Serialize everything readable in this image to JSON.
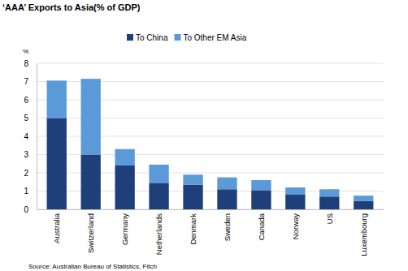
{
  "chart_data": {
    "type": "bar",
    "stacked": true,
    "title": "‘AAA’ Exports to Asia(% of GDP)",
    "y_label": "%",
    "source": "Source: Australian Bureau of Statistics, Fitch",
    "categories": [
      "Australia",
      "Switzerland",
      "Germany",
      "Netherlands",
      "Denmark",
      "Sweden",
      "Canada",
      "Norway",
      "US",
      "Luxembourg"
    ],
    "series": [
      {
        "name": "To China",
        "color": "#1f3f7a",
        "values": [
          5.0,
          3.0,
          2.4,
          1.45,
          1.35,
          1.1,
          1.05,
          0.8,
          0.7,
          0.45
        ]
      },
      {
        "name": "To Other EM Asia",
        "color": "#5b9ad8",
        "values": [
          2.05,
          4.15,
          0.9,
          1.0,
          0.55,
          0.65,
          0.55,
          0.4,
          0.4,
          0.3
        ]
      }
    ],
    "ylim": [
      0,
      8
    ],
    "yticks": [
      0,
      1,
      2,
      3,
      4,
      5,
      6,
      7,
      8
    ],
    "grid": true,
    "legend": "top"
  }
}
